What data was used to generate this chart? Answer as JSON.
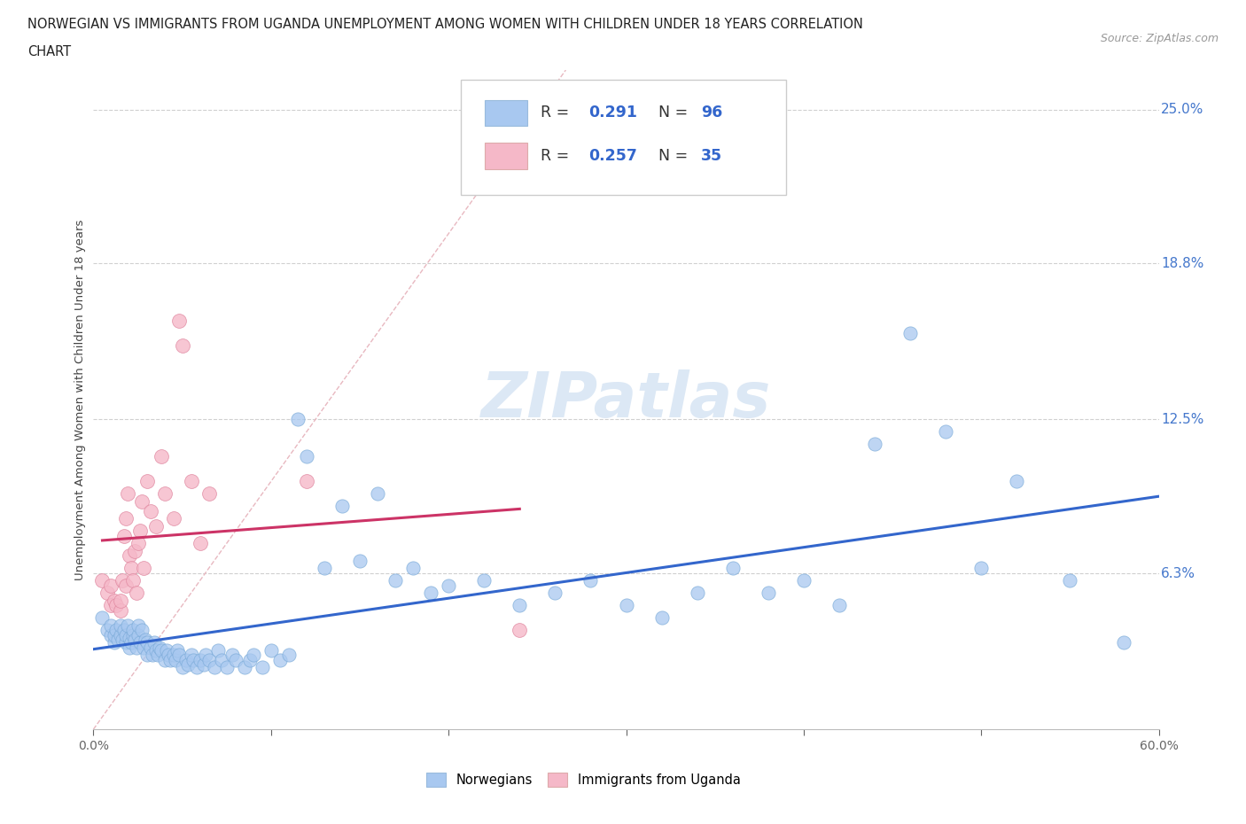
{
  "title_line1": "NORWEGIAN VS IMMIGRANTS FROM UGANDA UNEMPLOYMENT AMONG WOMEN WITH CHILDREN UNDER 18 YEARS CORRELATION",
  "title_line2": "CHART",
  "source": "Source: ZipAtlas.com",
  "ylabel": "Unemployment Among Women with Children Under 18 years",
  "xlim": [
    0.0,
    0.6
  ],
  "ylim": [
    0.0,
    0.266
  ],
  "xticks": [
    0.0,
    0.1,
    0.2,
    0.3,
    0.4,
    0.5,
    0.6
  ],
  "xticklabels": [
    "0.0%",
    "",
    "",
    "",
    "",
    "",
    "60.0%"
  ],
  "yticks": [
    0.0628,
    0.125,
    0.188,
    0.25
  ],
  "yticklabels": [
    "6.3%",
    "12.5%",
    "18.8%",
    "25.0%"
  ],
  "grid_color": "#d0d0d0",
  "background_color": "#ffffff",
  "norwegian_color": "#a8c8f0",
  "uganda_color": "#f5b8c8",
  "norwegian_line_color": "#3366cc",
  "uganda_line_color": "#cc3366",
  "diagonal_color": "#e8b8c0",
  "watermark_color": "#dce8f5",
  "legend_labels": [
    "Norwegians",
    "Immigrants from Uganda"
  ],
  "norwegian_R": 0.291,
  "norwegian_N": 96,
  "uganda_R": 0.257,
  "uganda_N": 35,
  "nor_x": [
    0.005,
    0.008,
    0.01,
    0.01,
    0.012,
    0.012,
    0.013,
    0.014,
    0.015,
    0.015,
    0.016,
    0.017,
    0.018,
    0.018,
    0.019,
    0.02,
    0.02,
    0.021,
    0.022,
    0.022,
    0.023,
    0.024,
    0.025,
    0.025,
    0.026,
    0.027,
    0.028,
    0.029,
    0.03,
    0.03,
    0.032,
    0.033,
    0.034,
    0.035,
    0.036,
    0.037,
    0.038,
    0.04,
    0.041,
    0.042,
    0.043,
    0.045,
    0.046,
    0.047,
    0.048,
    0.05,
    0.052,
    0.053,
    0.055,
    0.056,
    0.058,
    0.06,
    0.062,
    0.063,
    0.065,
    0.068,
    0.07,
    0.072,
    0.075,
    0.078,
    0.08,
    0.085,
    0.088,
    0.09,
    0.095,
    0.1,
    0.105,
    0.11,
    0.115,
    0.12,
    0.13,
    0.14,
    0.15,
    0.16,
    0.17,
    0.18,
    0.19,
    0.2,
    0.22,
    0.24,
    0.26,
    0.28,
    0.3,
    0.32,
    0.34,
    0.36,
    0.38,
    0.4,
    0.42,
    0.44,
    0.46,
    0.48,
    0.5,
    0.52,
    0.55,
    0.58
  ],
  "nor_y": [
    0.045,
    0.04,
    0.038,
    0.042,
    0.035,
    0.038,
    0.04,
    0.036,
    0.038,
    0.042,
    0.036,
    0.04,
    0.035,
    0.038,
    0.042,
    0.033,
    0.037,
    0.035,
    0.038,
    0.04,
    0.036,
    0.033,
    0.038,
    0.042,
    0.035,
    0.04,
    0.033,
    0.036,
    0.03,
    0.035,
    0.033,
    0.03,
    0.035,
    0.032,
    0.03,
    0.033,
    0.032,
    0.028,
    0.032,
    0.03,
    0.028,
    0.03,
    0.028,
    0.032,
    0.03,
    0.025,
    0.028,
    0.026,
    0.03,
    0.028,
    0.025,
    0.028,
    0.026,
    0.03,
    0.028,
    0.025,
    0.032,
    0.028,
    0.025,
    0.03,
    0.028,
    0.025,
    0.028,
    0.03,
    0.025,
    0.032,
    0.028,
    0.03,
    0.125,
    0.11,
    0.065,
    0.09,
    0.068,
    0.095,
    0.06,
    0.065,
    0.055,
    0.058,
    0.06,
    0.05,
    0.055,
    0.06,
    0.05,
    0.045,
    0.055,
    0.065,
    0.055,
    0.06,
    0.05,
    0.115,
    0.16,
    0.12,
    0.065,
    0.1,
    0.06,
    0.035
  ],
  "uga_x": [
    0.005,
    0.008,
    0.01,
    0.01,
    0.012,
    0.013,
    0.015,
    0.015,
    0.016,
    0.017,
    0.018,
    0.018,
    0.019,
    0.02,
    0.021,
    0.022,
    0.023,
    0.024,
    0.025,
    0.026,
    0.027,
    0.028,
    0.03,
    0.032,
    0.035,
    0.038,
    0.04,
    0.045,
    0.048,
    0.05,
    0.055,
    0.06,
    0.065,
    0.12,
    0.24
  ],
  "uga_y": [
    0.06,
    0.055,
    0.05,
    0.058,
    0.052,
    0.05,
    0.048,
    0.052,
    0.06,
    0.078,
    0.058,
    0.085,
    0.095,
    0.07,
    0.065,
    0.06,
    0.072,
    0.055,
    0.075,
    0.08,
    0.092,
    0.065,
    0.1,
    0.088,
    0.082,
    0.11,
    0.095,
    0.085,
    0.165,
    0.155,
    0.1,
    0.075,
    0.095,
    0.1,
    0.04
  ]
}
